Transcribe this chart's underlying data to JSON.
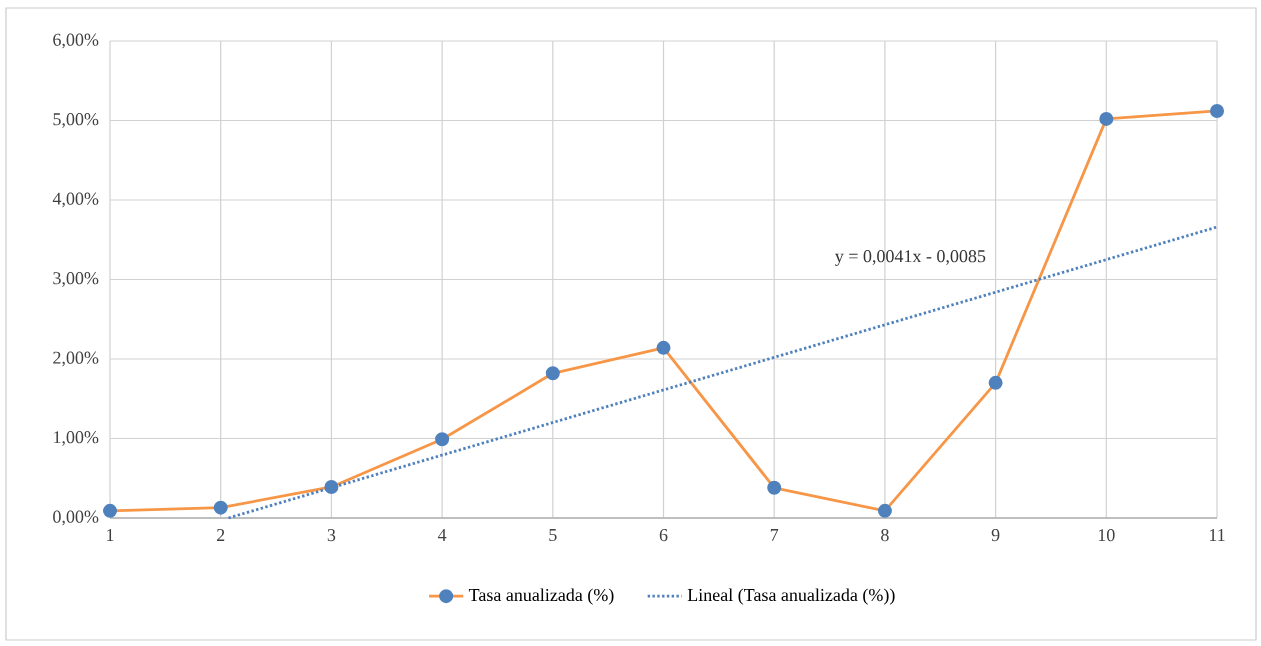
{
  "chart_data": {
    "type": "line",
    "x": [
      1,
      2,
      3,
      4,
      5,
      6,
      7,
      8,
      9,
      10,
      11
    ],
    "series": [
      {
        "name": "Tasa anualizada (%)",
        "color": "#f79646",
        "values": [
          0.09,
          0.13,
          0.39,
          0.99,
          1.82,
          2.14,
          0.38,
          0.09,
          1.7,
          5.02,
          5.12
        ]
      },
      {
        "name": "Lineal (Tasa anualizada (%))",
        "color": "#4f81bd",
        "x": [
          2.07,
          11
        ],
        "values": [
          0,
          3.66
        ],
        "marker": "none",
        "line_style": "dotted"
      }
    ],
    "xlim": [
      1,
      11
    ],
    "xticks": [
      1,
      2,
      3,
      4,
      5,
      6,
      7,
      8,
      9,
      10,
      11
    ],
    "ylim": [
      0,
      6
    ],
    "yticks": [
      {
        "value": 0,
        "label": "0,00%"
      },
      {
        "value": 1,
        "label": "1,00%"
      },
      {
        "value": 2,
        "label": "2,00%"
      },
      {
        "value": 3,
        "label": "3,00%"
      },
      {
        "value": 4,
        "label": "4,00%"
      },
      {
        "value": 5,
        "label": "5,00%"
      },
      {
        "value": 6,
        "label": "6,00%"
      }
    ],
    "annotations": [
      "y = 0,0041x - 0,0085"
    ],
    "grid": true,
    "legend": "bottom",
    "marker": "circle",
    "line_style": "solid"
  }
}
